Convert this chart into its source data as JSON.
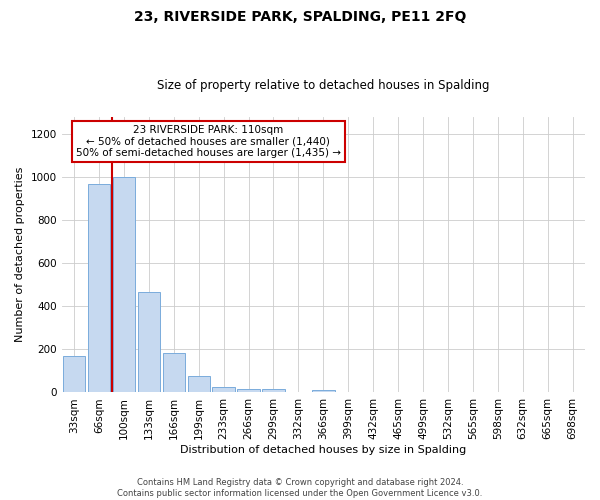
{
  "title": "23, RIVERSIDE PARK, SPALDING, PE11 2FQ",
  "subtitle": "Size of property relative to detached houses in Spalding",
  "xlabel": "Distribution of detached houses by size in Spalding",
  "ylabel": "Number of detached properties",
  "bar_labels": [
    "33sqm",
    "66sqm",
    "100sqm",
    "133sqm",
    "166sqm",
    "199sqm",
    "233sqm",
    "266sqm",
    "299sqm",
    "332sqm",
    "366sqm",
    "399sqm",
    "432sqm",
    "465sqm",
    "499sqm",
    "532sqm",
    "565sqm",
    "598sqm",
    "632sqm",
    "665sqm",
    "698sqm"
  ],
  "bar_heights": [
    170,
    970,
    1000,
    465,
    185,
    75,
    25,
    15,
    15,
    0,
    10,
    0,
    0,
    0,
    0,
    0,
    0,
    0,
    0,
    0,
    0
  ],
  "bar_color": "#c6d9f0",
  "bar_edge_color": "#7aacdc",
  "vline_color": "#cc0000",
  "annotation_title": "23 RIVERSIDE PARK: 110sqm",
  "annotation_line1": "← 50% of detached houses are smaller (1,440)",
  "annotation_line2": "50% of semi-detached houses are larger (1,435) →",
  "annotation_box_color": "#ffffff",
  "annotation_box_edge": "#cc0000",
  "ylim": [
    0,
    1280
  ],
  "yticks": [
    0,
    200,
    400,
    600,
    800,
    1000,
    1200
  ],
  "footer_line1": "Contains HM Land Registry data © Crown copyright and database right 2024.",
  "footer_line2": "Contains public sector information licensed under the Open Government Licence v3.0."
}
